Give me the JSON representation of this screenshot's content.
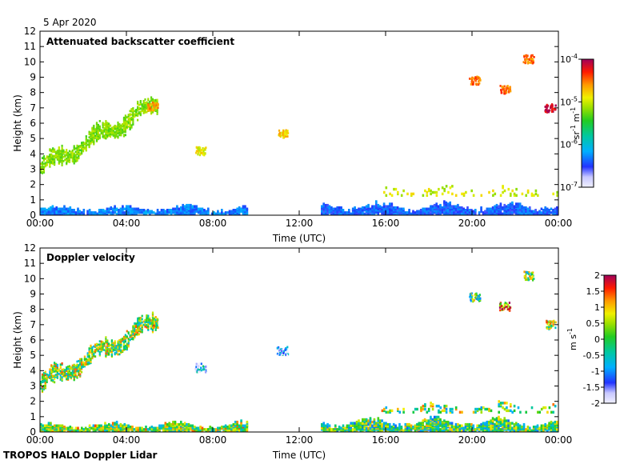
{
  "date": "5 Apr 2020",
  "footer": "TROPOS HALO Doppler Lidar",
  "chart_data": [
    {
      "type": "heatmap",
      "title": "Attenuated backscatter coefficient",
      "xlabel": "Time (UTC)",
      "ylabel": "Height (km)",
      "xticks": [
        "00:00",
        "04:00",
        "08:00",
        "12:00",
        "16:00",
        "20:00",
        "00:00"
      ],
      "xlim_hours": [
        0,
        24
      ],
      "ylim": [
        0,
        12
      ],
      "yticks": [
        0,
        1,
        2,
        3,
        4,
        5,
        6,
        7,
        8,
        9,
        10,
        11,
        12
      ],
      "colorbar": {
        "unit_label": "sr-1 m-1",
        "scale": "log",
        "range": [
          1e-07,
          0.0001
        ],
        "ticks": [
          {
            "value": -7,
            "base": "10",
            "exp": "-7"
          },
          {
            "value": -6,
            "base": "10",
            "exp": "-6"
          },
          {
            "value": -5,
            "base": "10",
            "exp": "-5"
          },
          {
            "value": -4,
            "base": "10",
            "exp": "-4"
          }
        ]
      },
      "features": [
        {
          "kind": "boundary_layer",
          "t": [
            0.0,
            9.6
          ],
          "h": [
            0.0,
            0.65
          ],
          "value": -6.3
        },
        {
          "kind": "boundary_layer",
          "t": [
            13.0,
            24.0
          ],
          "h": [
            0.0,
            0.9
          ],
          "value": -6.4
        },
        {
          "kind": "low_cloud_tops",
          "t": [
            15.8,
            23.9
          ],
          "h": [
            1.2,
            2.0
          ],
          "value": -5.0
        },
        {
          "kind": "elevated_layer",
          "t0": 0.0,
          "h0": 3.0,
          "t1": 5.4,
          "h1": 7.2,
          "value": -5.2
        },
        {
          "kind": "patch",
          "t": 5.2,
          "h": 7.0,
          "value": -4.6
        },
        {
          "kind": "patch",
          "t": 7.4,
          "h": 4.1,
          "value": -4.9
        },
        {
          "kind": "patch",
          "t": 11.2,
          "h": 5.2,
          "value": -4.8
        },
        {
          "kind": "patch",
          "t": 21.5,
          "h": 8.1,
          "value": -4.5
        },
        {
          "kind": "patch",
          "t": 23.6,
          "h": 6.9,
          "value": -4.1
        },
        {
          "kind": "patch",
          "t": 22.6,
          "h": 10.1,
          "value": -4.5
        },
        {
          "kind": "patch",
          "t": 20.1,
          "h": 8.7,
          "value": -4.5
        }
      ]
    },
    {
      "type": "heatmap",
      "title": "Doppler velocity",
      "xlabel": "Time (UTC)",
      "ylabel": "Height (km)",
      "xticks": [
        "00:00",
        "04:00",
        "08:00",
        "12:00",
        "16:00",
        "20:00",
        "00:00"
      ],
      "xlim_hours": [
        0,
        24
      ],
      "ylim": [
        0,
        12
      ],
      "yticks": [
        0,
        1,
        2,
        3,
        4,
        5,
        6,
        7,
        8,
        9,
        10,
        11,
        12
      ],
      "colorbar": {
        "unit_label": "m s-1",
        "scale": "linear",
        "range": [
          -2,
          2
        ],
        "ticks": [
          "-2",
          "-1.5",
          "-1",
          "-0.5",
          "0",
          "0.5",
          "1",
          "1.5",
          "2"
        ]
      },
      "features": [
        {
          "kind": "boundary_layer",
          "t": [
            0.0,
            9.6
          ],
          "h": [
            0.0,
            0.65
          ],
          "value": 0.3
        },
        {
          "kind": "boundary_layer",
          "t": [
            13.0,
            24.0
          ],
          "h": [
            0.0,
            1.0
          ],
          "value": 0.0
        },
        {
          "kind": "low_cloud_tops",
          "t": [
            15.8,
            23.9
          ],
          "h": [
            1.2,
            2.0
          ],
          "value": 0.2
        },
        {
          "kind": "elevated_layer",
          "t0": 0.0,
          "h0": 3.0,
          "t1": 5.4,
          "h1": 7.2,
          "value": 0.3
        },
        {
          "kind": "patch",
          "t": 5.2,
          "h": 7.0,
          "value": 0.5
        },
        {
          "kind": "patch",
          "t": 7.4,
          "h": 4.1,
          "value": -1.3
        },
        {
          "kind": "patch",
          "t": 11.2,
          "h": 5.2,
          "value": -1.3
        },
        {
          "kind": "patch",
          "t": 21.5,
          "h": 8.1,
          "value": 1.2
        },
        {
          "kind": "patch",
          "t": 23.6,
          "h": 6.9,
          "value": 0.4
        },
        {
          "kind": "patch",
          "t": 22.6,
          "h": 10.1,
          "value": 0.1
        },
        {
          "kind": "patch",
          "t": 20.1,
          "h": 8.7,
          "value": 0.0
        }
      ]
    }
  ]
}
